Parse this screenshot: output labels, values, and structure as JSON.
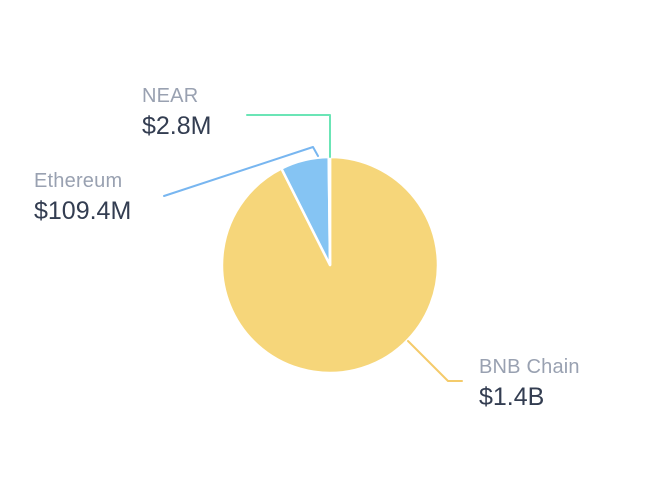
{
  "background_color": "#FFFFFF",
  "text_colors": {
    "slice_label": "#99A1B1",
    "slice_value": "#333D51"
  },
  "chart_data": {
    "type": "pie",
    "title": "",
    "legend": "none",
    "unit": "USD",
    "direction": "clockwise",
    "start_angle_deg": 0,
    "slice_gap_color": "#FFFFFF",
    "slices": [
      {
        "label": "BNB Chain",
        "value_text": "$1.4B",
        "value_usd_millions": 1400,
        "share_pct": 92.6,
        "color": "#F6D67A",
        "line_color": "#F4CB6B"
      },
      {
        "label": "Ethereum",
        "value_text": "$109.4M",
        "value_usd_millions": 109.4,
        "share_pct": 7.2,
        "color": "#85C4F3",
        "line_color": "#78B6F0"
      },
      {
        "label": "NEAR",
        "value_text": "$2.8M",
        "value_usd_millions": 2.8,
        "share_pct": 0.2,
        "color": "#6BE5B6",
        "line_color": "#6BE5B6"
      }
    ]
  }
}
